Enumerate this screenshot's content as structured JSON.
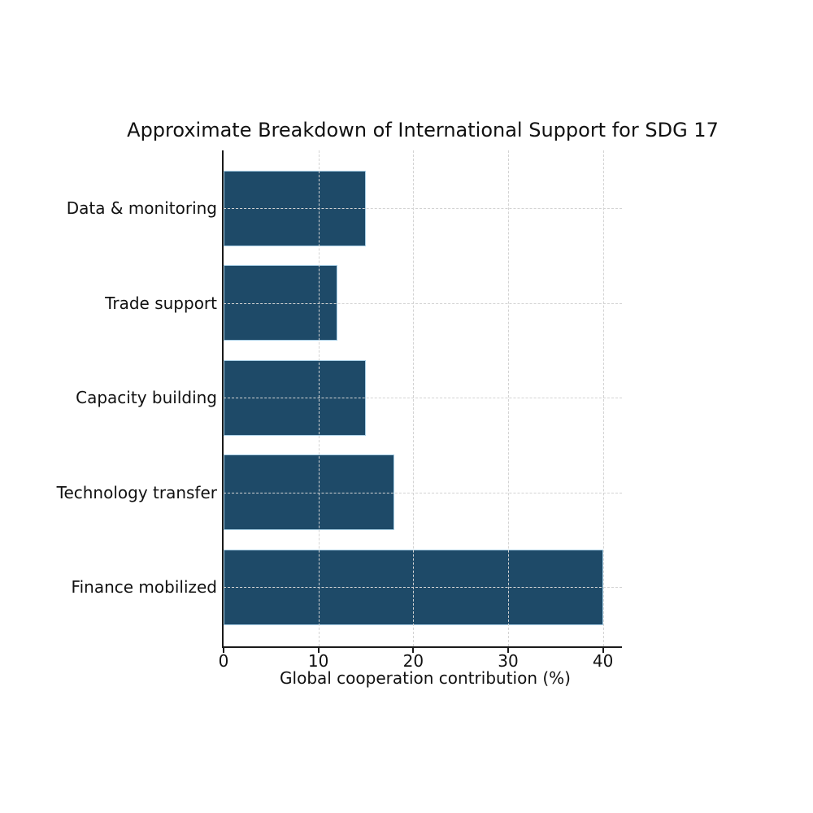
{
  "chart_data": {
    "type": "bar",
    "orientation": "horizontal",
    "title": "Approximate Breakdown of International Support for SDG 17",
    "xlabel": "Global cooperation contribution (%)",
    "ylabel": "",
    "categories": [
      "Data & monitoring",
      "Trade support",
      "Capacity building",
      "Technology transfer",
      "Finance mobilized"
    ],
    "values": [
      15,
      12,
      15,
      18,
      40
    ],
    "xlim": [
      0,
      42
    ],
    "xticks": [
      0,
      10,
      20,
      30,
      40
    ],
    "grid": true,
    "grid_style": "dashed",
    "legend": false,
    "colors": {
      "bar_fill": "#1e4a68",
      "bar_edge": "#a9cfe5",
      "grid": "#d3d3d3",
      "axis": "#1a1a1a",
      "text": "#111111",
      "background": "#ffffff"
    }
  }
}
